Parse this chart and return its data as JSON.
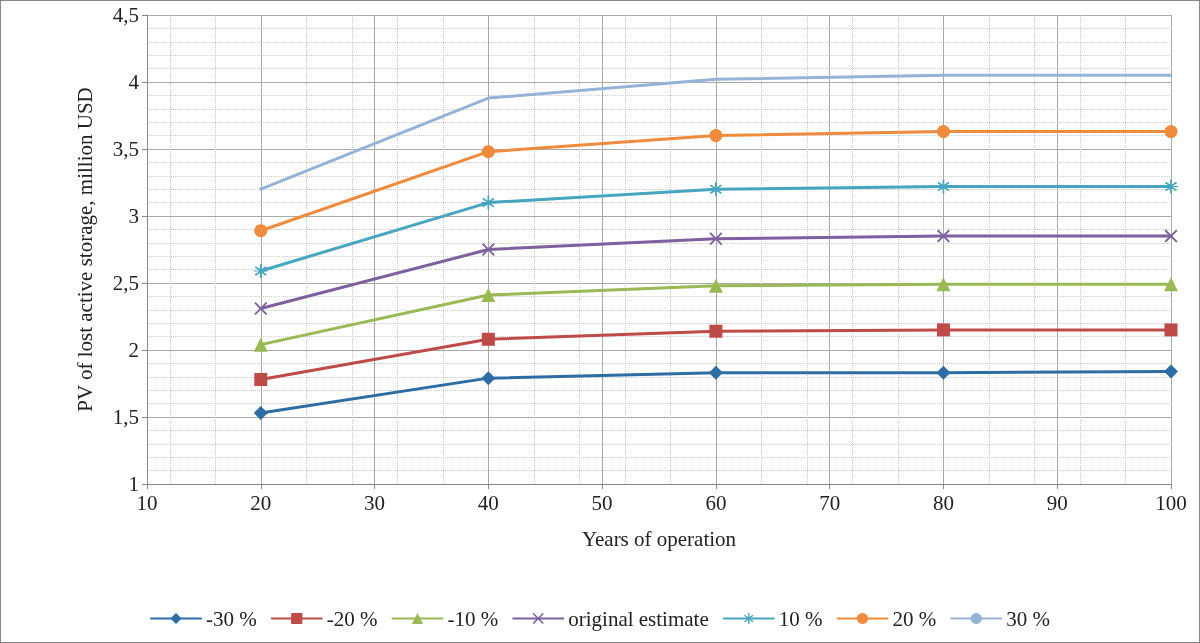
{
  "chart_data": {
    "type": "line",
    "xlabel": "Years of operation",
    "ylabel": "PV of lost active storage, million USD",
    "x": [
      20,
      40,
      60,
      80,
      100
    ],
    "xlim": [
      10,
      100
    ],
    "xticks": [
      10,
      20,
      30,
      40,
      50,
      60,
      70,
      80,
      90,
      100
    ],
    "ylim": [
      1,
      4.5
    ],
    "yticks": [
      1,
      {
        "value": 1.5,
        "label": "1,5"
      },
      2,
      {
        "value": 2.5,
        "label": "2,5"
      },
      3,
      {
        "value": 3.5,
        "label": "3,5"
      },
      4,
      {
        "value": 4.5,
        "label": "4,5"
      }
    ],
    "grid": true,
    "legend": "bottom",
    "line_style": "solid",
    "series": [
      {
        "name": "-30 %",
        "color": "#2e6da4",
        "marker": "diamond",
        "values": [
          1.53,
          1.79,
          1.83,
          1.83,
          1.84
        ]
      },
      {
        "name": "-20 %",
        "color": "#be4b48",
        "marker": "square",
        "values": [
          1.78,
          2.08,
          2.14,
          2.15,
          2.15
        ]
      },
      {
        "name": "-10 %",
        "color": "#98b954",
        "marker": "triangle",
        "values": [
          2.04,
          2.41,
          2.48,
          2.49,
          2.49
        ]
      },
      {
        "name": "original estimate",
        "color": "#7d60a0",
        "marker": "cross",
        "values": [
          2.31,
          2.75,
          2.83,
          2.85,
          2.85
        ]
      },
      {
        "name": "10 %",
        "color": "#46a5bf",
        "marker": "star",
        "values": [
          2.59,
          3.1,
          3.2,
          3.22,
          3.22
        ]
      },
      {
        "name": "20 %",
        "color": "#f08a3c",
        "marker": "circle",
        "values": [
          2.89,
          3.48,
          3.6,
          3.63,
          3.63
        ]
      },
      {
        "name": "30 %",
        "color": "#95b3d7",
        "marker": "none",
        "values": [
          3.2,
          3.88,
          4.02,
          4.05,
          4.05
        ]
      }
    ]
  }
}
